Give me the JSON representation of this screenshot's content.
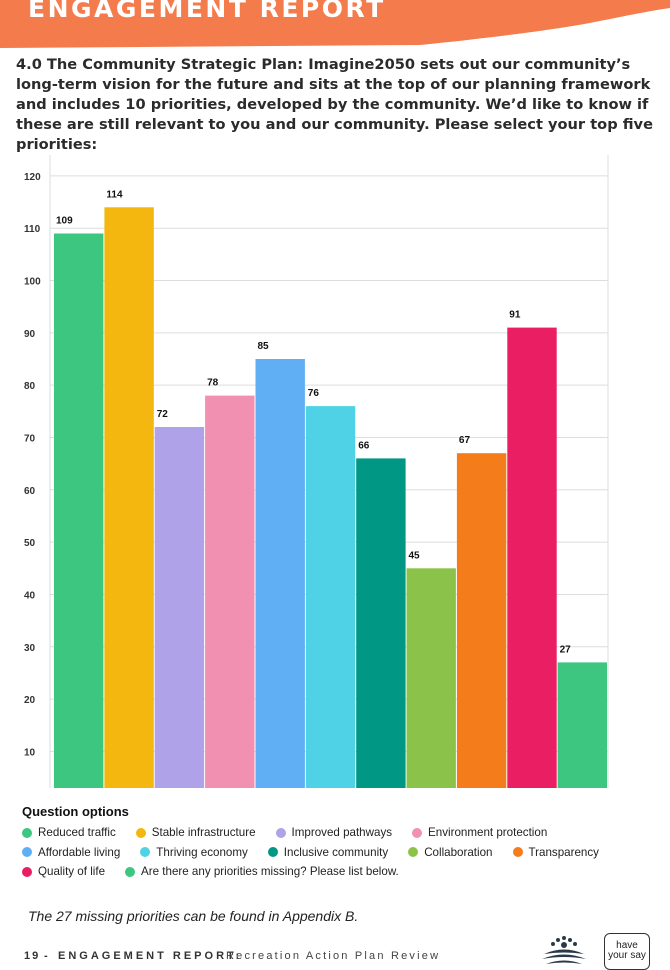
{
  "header": {
    "title": "ENGAGEMENT REPORT",
    "color": "#F47C4C"
  },
  "question": {
    "text": "4.0 The Community Strategic Plan: Imagine2050 sets out our community’s long-term vision for the future and sits at the top of our planning framework and includes 10 priorities, developed by the community. We’d like to know if these are still relevant to you and our community. Please select your top five priorities:"
  },
  "chart_data": {
    "type": "bar",
    "categories": [
      "Reduced traffic",
      "Stable infrastructure",
      "Improved pathways",
      "Environment protection",
      "Affordable living",
      "Thriving economy",
      "Inclusive community",
      "Collaboration",
      "Transparency",
      "Quality of life",
      "Are there any priorities missing? Please list below."
    ],
    "values": [
      109,
      114,
      72,
      78,
      85,
      76,
      66,
      45,
      67,
      91,
      27
    ],
    "colors": [
      "#3DC67F",
      "#F3B70F",
      "#AFA2E8",
      "#F290B2",
      "#60AEF4",
      "#4FD2E6",
      "#009784",
      "#8BC34A",
      "#F47C1A",
      "#E91E63",
      "#3DC67F"
    ],
    "yticks": [
      10,
      20,
      30,
      40,
      50,
      60,
      70,
      80,
      90,
      100,
      110,
      120
    ],
    "ytick_labels": [
      "10",
      "20",
      "30",
      "40",
      "50",
      "60",
      "70",
      "80",
      "90",
      "100",
      "110",
      "120"
    ],
    "data_labels": [
      "109",
      "114",
      "72",
      "78",
      "85",
      "76",
      "66",
      "45",
      "67",
      "91",
      "27"
    ],
    "ylim": [
      3,
      124
    ],
    "grid": true,
    "legend_title": "Question options",
    "legend_position": "bottom"
  },
  "note": {
    "text": "The 27 missing priorities can be found in Appendix B."
  },
  "footer": {
    "page_number": "19",
    "separator": "-",
    "report_title": "ENGAGEMENT REPORT:",
    "report_subtitle": "Recreation Action Plan Review",
    "logo_text_line1": "have",
    "logo_text_line2": "your say"
  }
}
